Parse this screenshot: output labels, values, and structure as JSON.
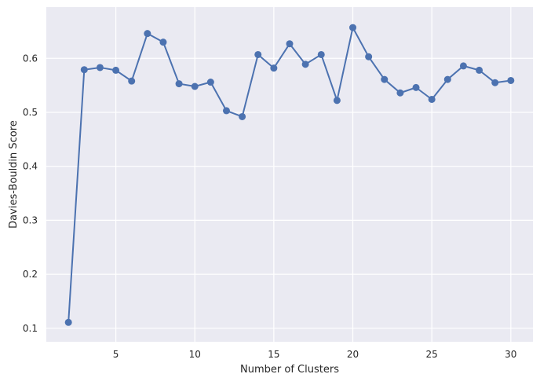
{
  "chart_data": {
    "type": "line",
    "title": "",
    "xlabel": "Number of Clusters",
    "ylabel": "Davies-Bouldin Score",
    "xlim": [
      0.6,
      31.4
    ],
    "ylim": [
      0.075,
      0.695
    ],
    "xticks": [
      5,
      10,
      15,
      20,
      25,
      30
    ],
    "yticks": [
      0.1,
      0.2,
      0.3,
      0.4,
      0.5,
      0.6
    ],
    "grid": true,
    "legend": "none",
    "colors": {
      "line": "#4c72b0",
      "background": "#eaeaf2",
      "grid": "#ffffff"
    },
    "series": [
      {
        "x": [
          2,
          3,
          4,
          5,
          6,
          7,
          8,
          9,
          10,
          11,
          12,
          13,
          14,
          15,
          16,
          17,
          18,
          19,
          20,
          21,
          22,
          23,
          24,
          25,
          26,
          27,
          28,
          29,
          30
        ],
        "values": [
          0.111,
          0.579,
          0.583,
          0.578,
          0.558,
          0.646,
          0.63,
          0.553,
          0.548,
          0.556,
          0.503,
          0.492,
          0.607,
          0.582,
          0.627,
          0.589,
          0.607,
          0.522,
          0.657,
          0.603,
          0.561,
          0.536,
          0.546,
          0.524,
          0.561,
          0.586,
          0.578,
          0.555,
          0.559
        ]
      }
    ]
  }
}
